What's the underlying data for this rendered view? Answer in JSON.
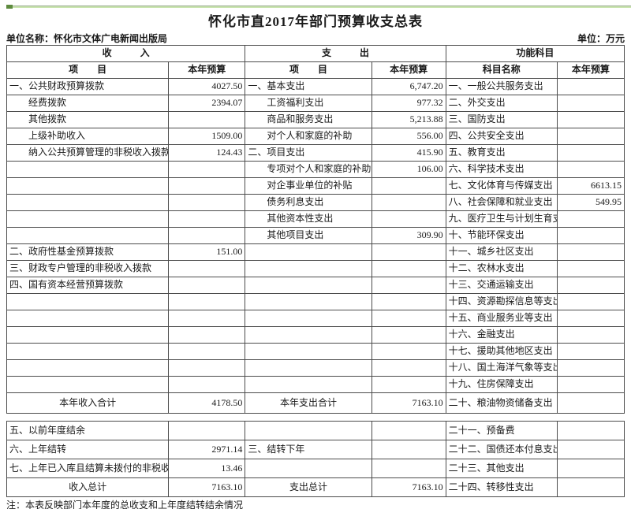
{
  "page": {
    "title": "怀化市直2017年部门预算收支总表",
    "unit_name": "单位名称：怀化市文体广电新闻出版局",
    "unit_label": "单位：万元",
    "note": "注：本表反映部门本年度的总收支和上年度结转结余情况"
  },
  "table": {
    "group_headers": [
      "收　　　入",
      "支　　　出",
      "功能科目"
    ],
    "column_headers": [
      "项　　目",
      "本年预算",
      "项　　目",
      "本年预算",
      "科目名称",
      "本年预算"
    ],
    "main_rows": [
      [
        "一、公共财政预算拨款",
        "4027.50",
        "一、基本支出",
        "6,747.20",
        "一、一般公共服务支出",
        ""
      ],
      [
        {
          "t": "经费拨款",
          "s": "indent"
        },
        "2394.07",
        {
          "t": "工资福利支出",
          "s": "indent"
        },
        "977.32",
        "二、外交支出",
        ""
      ],
      [
        {
          "t": "其他拨款",
          "s": "indent"
        },
        "",
        {
          "t": "商品和服务支出",
          "s": "indent"
        },
        "5,213.88",
        "三、国防支出",
        ""
      ],
      [
        {
          "t": "上级补助收入",
          "s": "indent"
        },
        "1509.00",
        {
          "t": "对个人和家庭的补助",
          "s": "indent"
        },
        "556.00",
        "四、公共安全支出",
        ""
      ],
      [
        {
          "t": "纳入公共预算管理的非税收入拨款",
          "s": "indent"
        },
        "124.43",
        "二、项目支出",
        "415.90",
        "五、教育支出",
        ""
      ],
      [
        "",
        "",
        {
          "t": "专项对个人和家庭的补助",
          "s": "indent"
        },
        "106.00",
        "六、科学技术支出",
        ""
      ],
      [
        "",
        "",
        {
          "t": "对企事业单位的补贴",
          "s": "indent"
        },
        "",
        "七、文化体育与传媒支出",
        "6613.15"
      ],
      [
        "",
        "",
        {
          "t": "债务利息支出",
          "s": "indent"
        },
        "",
        "八、社会保障和就业支出",
        "549.95"
      ],
      [
        "",
        "",
        {
          "t": "其他资本性支出",
          "s": "indent"
        },
        "",
        "九、医疗卫生与计划生育支出",
        ""
      ],
      [
        "",
        "",
        {
          "t": "其他项目支出",
          "s": "indent"
        },
        "309.90",
        "十、节能环保支出",
        ""
      ],
      [
        "二、政府性基金预算拨款",
        "151.00",
        "",
        "",
        "十一、城乡社区支出",
        ""
      ],
      [
        "三、财政专户管理的非税收入拨款",
        "",
        "",
        "",
        "十二、农林水支出",
        ""
      ],
      [
        "四、国有资本经营预算拨款",
        "",
        "",
        "",
        "十三、交通运输支出",
        ""
      ],
      [
        "",
        "",
        "",
        "",
        "十四、资源勘探信息等支出",
        ""
      ],
      [
        "",
        "",
        "",
        "",
        "十五、商业服务业等支出",
        ""
      ],
      [
        "",
        "",
        "",
        "",
        "十六、金融支出",
        ""
      ],
      [
        "",
        "",
        "",
        "",
        "十七、援助其他地区支出",
        ""
      ],
      [
        "",
        "",
        "",
        "",
        "十八、国土海洋气象等支出",
        ""
      ],
      [
        "",
        "",
        "",
        "",
        "十九、住房保障支出",
        ""
      ],
      [
        {
          "t": "本年收入合计",
          "s": "center"
        },
        "4178.50",
        {
          "t": "本年支出合计",
          "s": "center"
        },
        "7163.10",
        "二十、粮油物资储备支出",
        ""
      ]
    ],
    "bottom_rows": [
      [
        "五、以前年度结余",
        "",
        "",
        "",
        "二十一、预备费",
        ""
      ],
      [
        "六、上年结转",
        "2971.14",
        "三、结转下年",
        "",
        "二十二、国债还本付息支出",
        ""
      ],
      [
        "七、上年已入库且结算未拨付的非税收入",
        "13.46",
        "",
        "",
        "二十三、其他支出",
        ""
      ],
      [
        {
          "t": "收入总计",
          "s": "center"
        },
        "7163.10",
        {
          "t": "支出总计",
          "s": "center"
        },
        "7163.10",
        "二十四、转移性支出",
        ""
      ]
    ]
  }
}
